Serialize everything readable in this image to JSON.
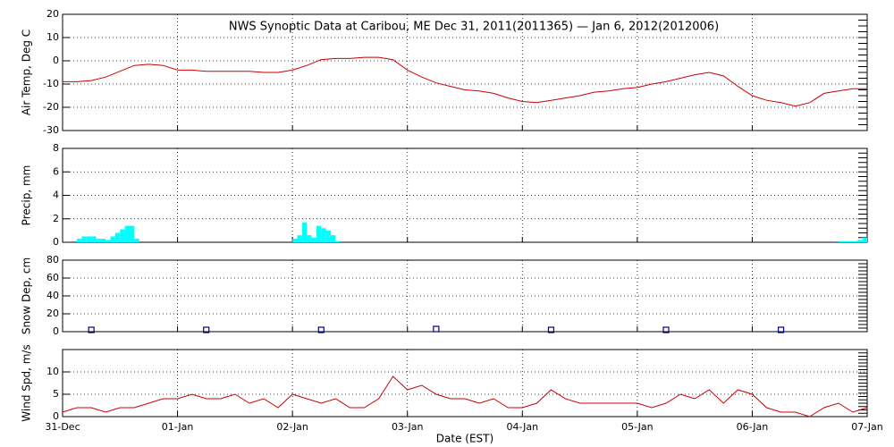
{
  "chart_data": [
    {
      "type": "line",
      "title": "NWS Synoptic Data at Caribou, ME   Dec 31, 2011(2011365) — Jan  6, 2012(2012006)",
      "ylabel": "Air Temp, Deg C",
      "x": [
        0,
        3,
        6,
        9,
        12,
        15,
        18,
        21,
        24,
        27,
        30,
        33,
        36,
        39,
        42,
        45,
        48,
        51,
        54,
        57,
        60,
        63,
        66,
        69,
        72,
        75,
        78,
        81,
        84,
        87,
        90,
        93,
        96,
        99,
        102,
        105,
        108,
        111,
        114,
        117,
        120,
        123,
        126,
        129,
        132,
        135,
        138,
        141,
        144,
        147,
        150,
        153,
        156,
        159,
        162,
        165,
        168
      ],
      "series": [
        {
          "color": "#cc0000",
          "values": [
            -9,
            -9,
            -8.5,
            -7,
            -4.5,
            -2,
            -1.5,
            -2,
            -4,
            -4,
            -4.5,
            -4.5,
            -4.5,
            -4.5,
            -5,
            -5,
            -4,
            -2,
            0.5,
            1,
            1,
            1.5,
            1.5,
            0.5,
            -4,
            -7,
            -9.5,
            -11,
            -12.5,
            -13,
            -14,
            -16,
            -17.5,
            -18,
            -17,
            -16,
            -15,
            -13.5,
            -13,
            -12,
            -11.5,
            -10,
            -9,
            -7.5,
            -6,
            -5,
            -6.5,
            -11,
            -15,
            -17,
            -18,
            -19.5,
            -18,
            -14,
            -13,
            -12,
            -12
          ]
        }
      ],
      "xlim": [
        0,
        168
      ],
      "ylim": [
        -30,
        20
      ],
      "yticks": [
        -30,
        -20,
        -10,
        0,
        10,
        20
      ],
      "grid": true
    },
    {
      "type": "bar",
      "ylabel": "Precip, mm",
      "x": [
        3,
        4,
        5,
        6,
        7,
        8,
        9,
        10,
        11,
        12,
        13,
        14,
        15,
        48,
        49,
        50,
        51,
        52,
        53,
        54,
        55,
        56,
        57,
        162,
        163,
        164,
        165,
        166,
        167
      ],
      "color": "#00ffff",
      "values": [
        0.3,
        0.5,
        0.5,
        0.5,
        0.3,
        0.3,
        0.2,
        0.5,
        0.8,
        1.1,
        1.4,
        1.4,
        0.3,
        0.3,
        0.6,
        1.7,
        0.6,
        0.4,
        1.4,
        1.2,
        1.0,
        0.6,
        0.1,
        0.1,
        0.1,
        0.1,
        0.1,
        0.2,
        0.4
      ],
      "xlim": [
        0,
        168
      ],
      "ylim": [
        0,
        8
      ],
      "yticks": [
        0,
        2,
        4,
        6,
        8
      ],
      "grid": true
    },
    {
      "type": "scatter",
      "ylabel": "Snow Dep, cm",
      "x": [
        6,
        30,
        54,
        78,
        102,
        126,
        150
      ],
      "color": "#000080",
      "values": [
        2,
        2,
        2,
        3,
        2,
        2,
        2
      ],
      "xlim": [
        0,
        168
      ],
      "ylim": [
        0,
        80
      ],
      "yticks": [
        0,
        20,
        40,
        60,
        80
      ],
      "grid": true
    },
    {
      "type": "line",
      "ylabel": "Wind Spd, m/s",
      "xlabel": "Date (EST)",
      "x": [
        0,
        3,
        6,
        9,
        12,
        15,
        18,
        21,
        24,
        27,
        30,
        33,
        36,
        39,
        42,
        45,
        48,
        51,
        54,
        57,
        60,
        63,
        66,
        69,
        72,
        75,
        78,
        81,
        84,
        87,
        90,
        93,
        96,
        99,
        102,
        105,
        108,
        111,
        114,
        117,
        120,
        123,
        126,
        129,
        132,
        135,
        138,
        141,
        144,
        147,
        150,
        153,
        156,
        159,
        162,
        165,
        168
      ],
      "series": [
        {
          "color": "#cc0000",
          "values": [
            1,
            2,
            2,
            1,
            2,
            2,
            3,
            4,
            4,
            5,
            4,
            4,
            5,
            3,
            4,
            2,
            5,
            4,
            3,
            4,
            2,
            2,
            4,
            9,
            6,
            7,
            5,
            4,
            4,
            3,
            4,
            2,
            2,
            3,
            6,
            4,
            3,
            3,
            3,
            3,
            3,
            2,
            3,
            5,
            4,
            6,
            3,
            6,
            5,
            2,
            1,
            1,
            0,
            2,
            3,
            1,
            2
          ]
        }
      ],
      "xlim": [
        0,
        168
      ],
      "ylim": [
        0,
        15
      ],
      "yticks": [
        0,
        5,
        10
      ],
      "xticks": [
        {
          "value": 0,
          "label": "31-Dec"
        },
        {
          "value": 24,
          "label": "01-Jan"
        },
        {
          "value": 48,
          "label": "02-Jan"
        },
        {
          "value": 72,
          "label": "03-Jan"
        },
        {
          "value": 96,
          "label": "04-Jan"
        },
        {
          "value": 120,
          "label": "05-Jan"
        },
        {
          "value": 144,
          "label": "06-Jan"
        },
        {
          "value": 168,
          "label": "07-Jan"
        }
      ],
      "grid": true
    }
  ]
}
